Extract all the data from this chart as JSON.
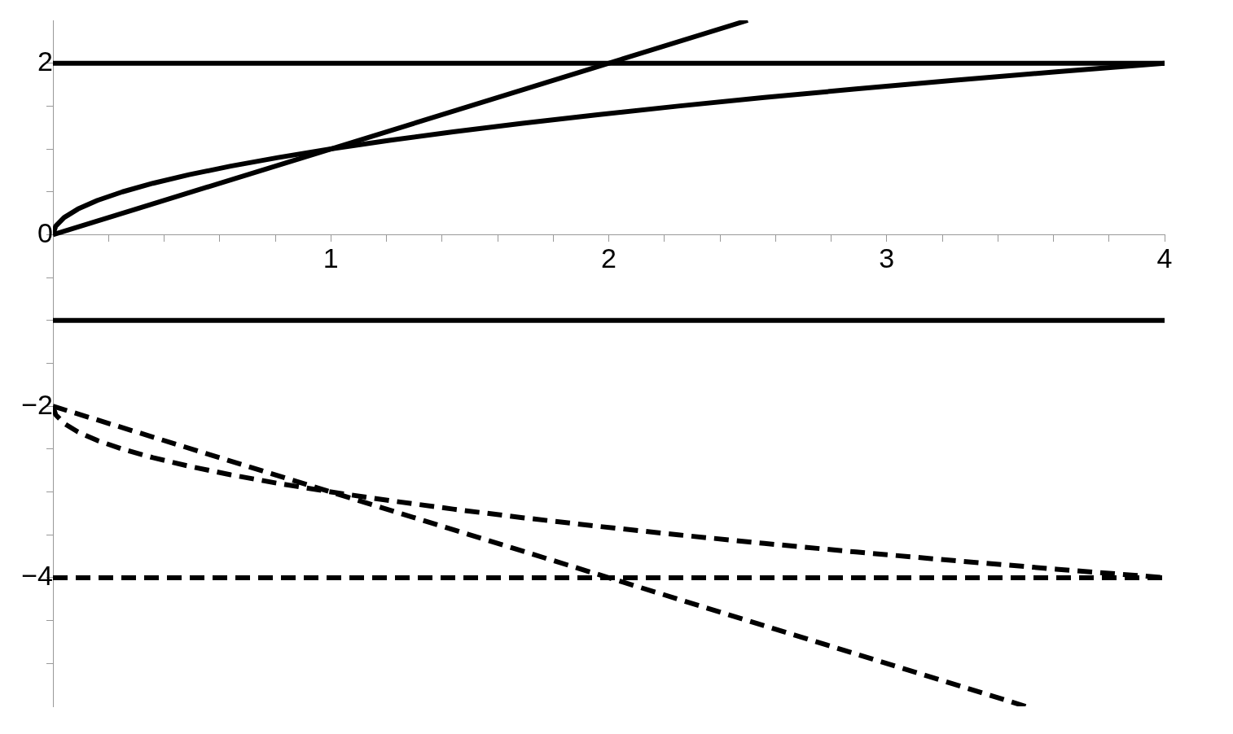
{
  "chart_data": {
    "type": "line",
    "xlim": [
      0,
      4
    ],
    "ylim": [
      -5.5,
      2.5
    ],
    "xticks": [
      {
        "value": 0.2,
        "label": null
      },
      {
        "value": 0.4,
        "label": null
      },
      {
        "value": 0.6,
        "label": null
      },
      {
        "value": 0.8,
        "label": null
      },
      1,
      {
        "value": 1.2,
        "label": null
      },
      {
        "value": 1.4,
        "label": null
      },
      {
        "value": 1.6,
        "label": null
      },
      {
        "value": 1.8,
        "label": null
      },
      2,
      {
        "value": 2.2,
        "label": null
      },
      {
        "value": 2.4,
        "label": null
      },
      {
        "value": 2.6,
        "label": null
      },
      {
        "value": 2.8,
        "label": null
      },
      3,
      {
        "value": 3.2,
        "label": null
      },
      {
        "value": 3.4,
        "label": null
      },
      {
        "value": 3.6,
        "label": null
      },
      {
        "value": 3.8,
        "label": null
      },
      4
    ],
    "yticks": [
      {
        "value": -5,
        "label": null
      },
      {
        "value": -4.5,
        "label": null
      },
      {
        "value": -4,
        "label": "−4"
      },
      {
        "value": -3.5,
        "label": null
      },
      {
        "value": -3,
        "label": null
      },
      {
        "value": -2.5,
        "label": null
      },
      {
        "value": -2,
        "label": "−2"
      },
      {
        "value": -1.5,
        "label": null
      },
      {
        "value": -1,
        "label": null
      },
      {
        "value": -0.5,
        "label": null
      },
      0,
      {
        "value": 0.5,
        "label": null
      },
      {
        "value": 1,
        "label": null
      },
      {
        "value": 1.5,
        "label": null
      },
      2
    ],
    "grid": false,
    "legend": false,
    "marker": "none",
    "series": [
      {
        "color": "#000000",
        "line_style": "solid",
        "x": [
          0,
          2.5
        ],
        "values": [
          0,
          2.5
        ]
      },
      {
        "color": "#000000",
        "line_style": "solid",
        "x": [
          0,
          0.01,
          0.04,
          0.09,
          0.16,
          0.25,
          0.36,
          0.49,
          0.64,
          0.81,
          1,
          1.21,
          1.44,
          1.69,
          1.96,
          2.25,
          2.56,
          2.89,
          3.24,
          3.61,
          4
        ],
        "values": [
          0,
          0.1,
          0.2,
          0.3,
          0.4,
          0.5,
          0.6,
          0.7,
          0.8,
          0.9,
          1,
          1.1,
          1.2,
          1.3,
          1.4,
          1.5,
          1.6,
          1.7,
          1.8,
          1.9,
          2
        ]
      },
      {
        "color": "#000000",
        "line_style": "solid",
        "x": [
          0,
          4
        ],
        "values": [
          2,
          2
        ]
      },
      {
        "color": "#000000",
        "line_style": "solid",
        "x": [
          0,
          4
        ],
        "values": [
          -1,
          -1
        ]
      },
      {
        "color": "#000000",
        "line_style": "dashed",
        "x": [
          0,
          3.5
        ],
        "values": [
          -2,
          -5.5
        ]
      },
      {
        "color": "#000000",
        "line_style": "dashed",
        "x": [
          0,
          0.01,
          0.04,
          0.09,
          0.16,
          0.25,
          0.36,
          0.49,
          0.64,
          0.81,
          1,
          1.21,
          1.44,
          1.69,
          1.96,
          2.25,
          2.56,
          2.89,
          3.24,
          3.61,
          4
        ],
        "values": [
          -2,
          -2.1,
          -2.2,
          -2.3,
          -2.4,
          -2.5,
          -2.6,
          -2.7,
          -2.8,
          -2.9,
          -3,
          -3.1,
          -3.2,
          -3.3,
          -3.4,
          -3.5,
          -3.6,
          -3.7,
          -3.8,
          -3.9,
          -4
        ]
      },
      {
        "color": "#000000",
        "line_style": "dashed",
        "x": [
          0,
          4
        ],
        "values": [
          -4,
          -4
        ]
      }
    ]
  }
}
